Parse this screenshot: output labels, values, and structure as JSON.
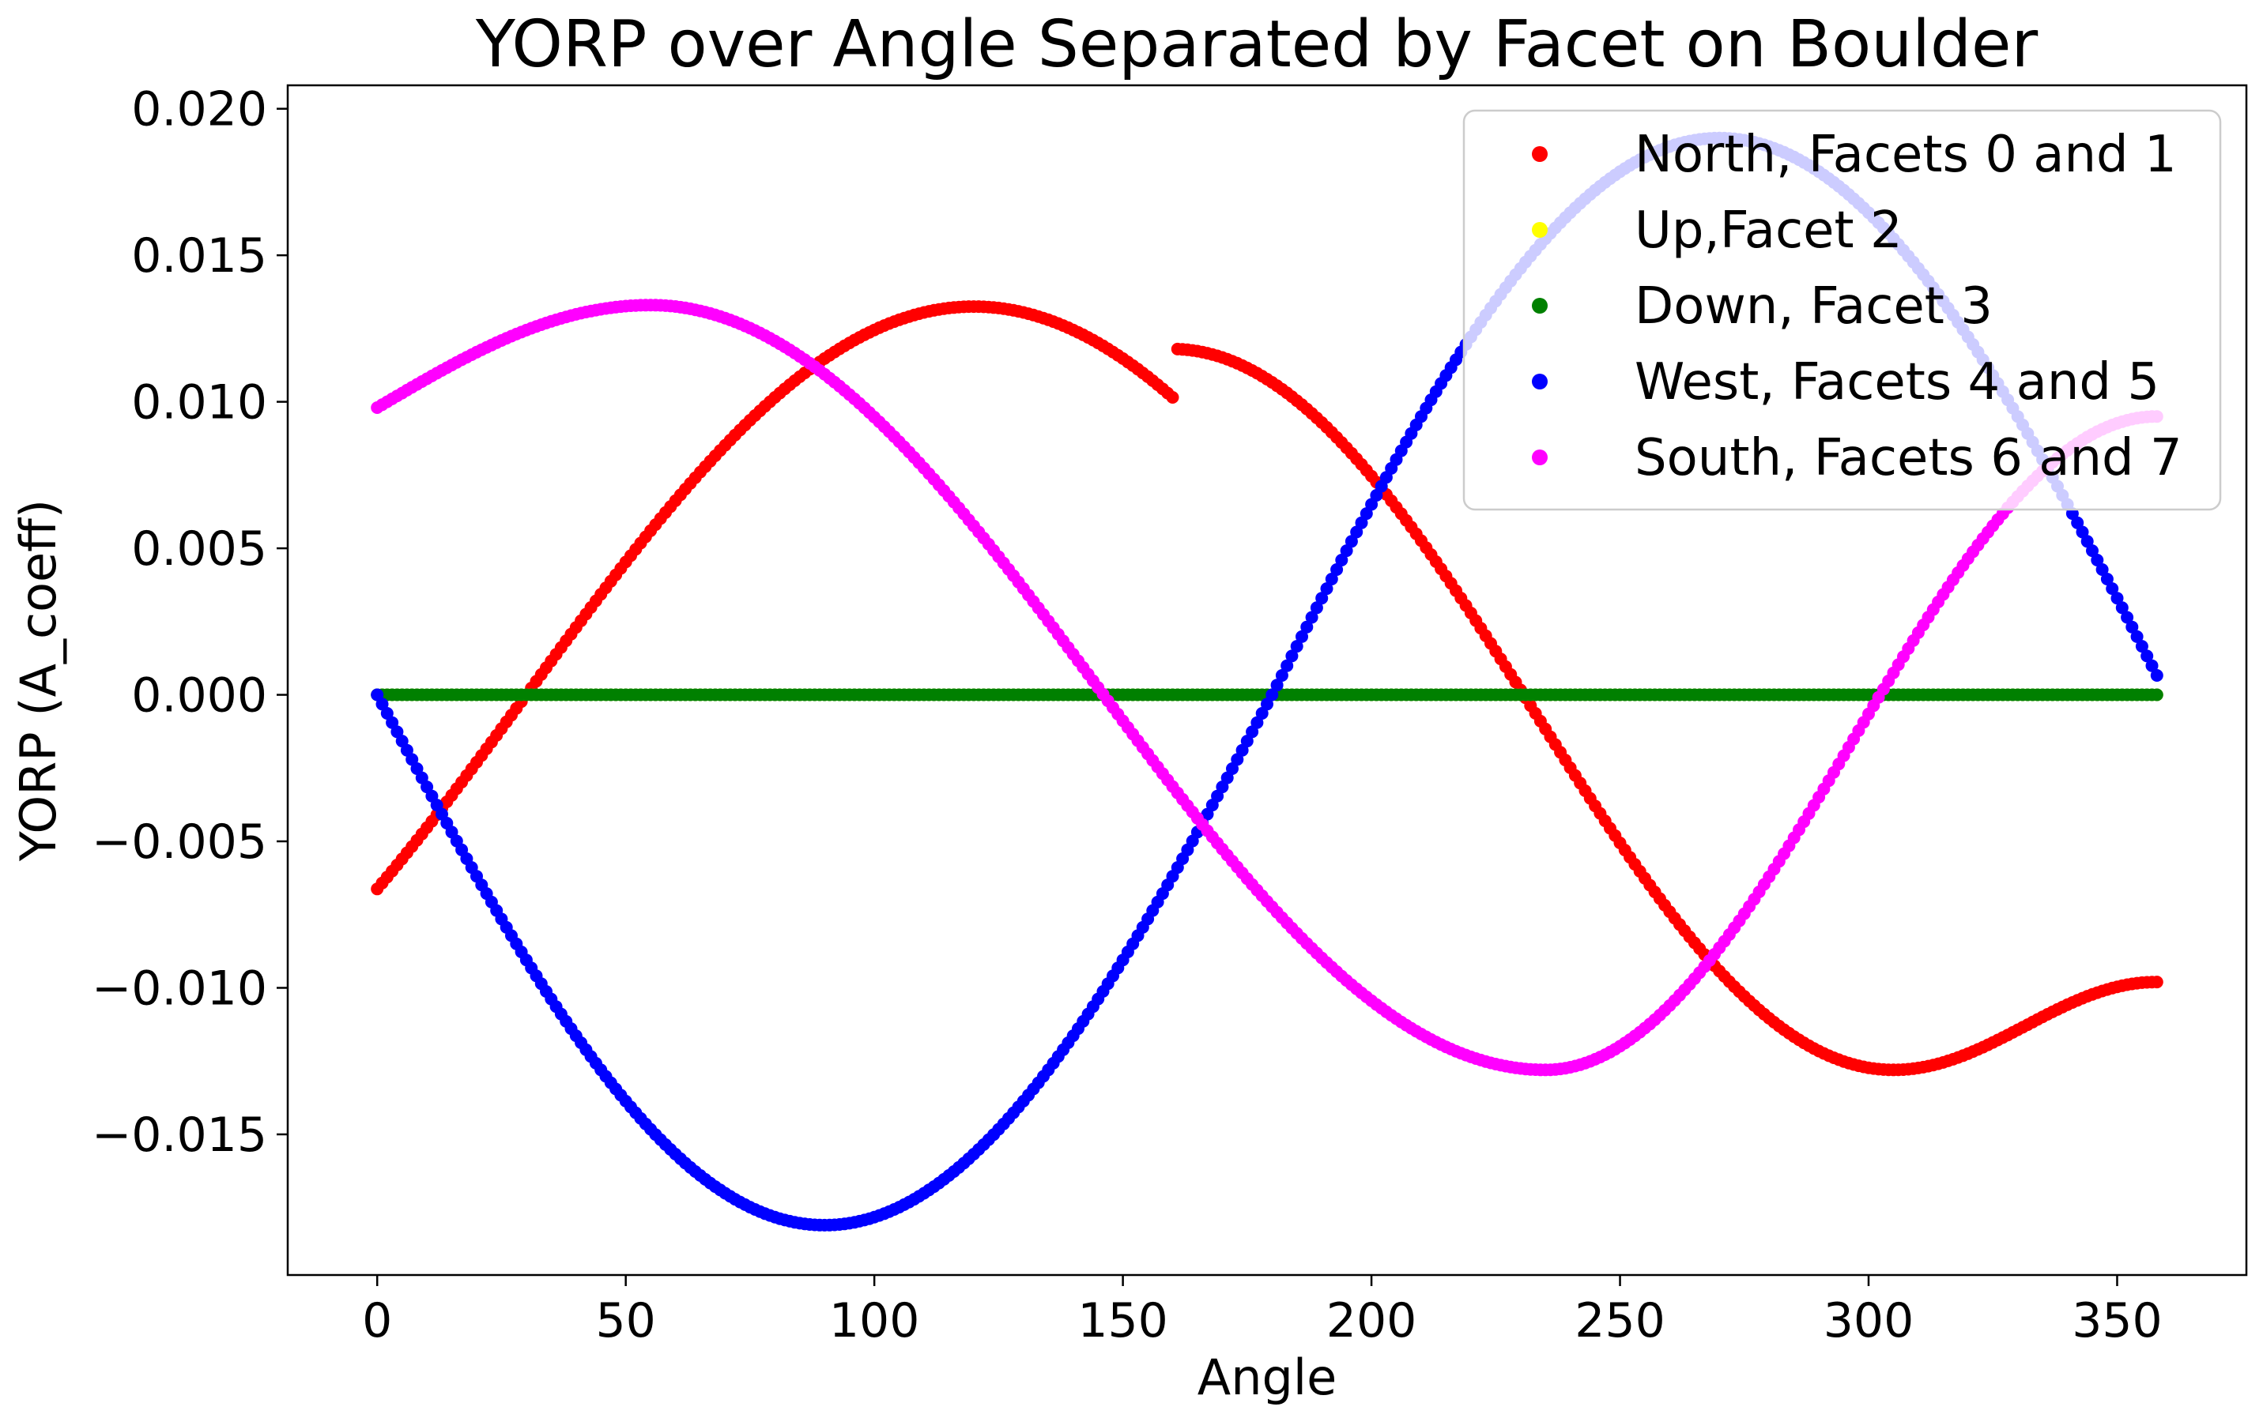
{
  "chart_data": {
    "type": "scatter",
    "title": "YORP over Angle Separated by Facet on Boulder",
    "xlabel": "Angle",
    "ylabel": "YORP (A_coeff)",
    "xlim": [
      -18,
      376
    ],
    "ylim": [
      -0.0198,
      0.0208
    ],
    "xticks": [
      0,
      50,
      100,
      150,
      200,
      250,
      300,
      350
    ],
    "xtick_labels": [
      "0",
      "50",
      "100",
      "150",
      "200",
      "250",
      "300",
      "350"
    ],
    "yticks": [
      -0.015,
      -0.01,
      -0.005,
      0.0,
      0.005,
      0.01,
      0.015,
      0.02
    ],
    "ytick_labels": [
      "−0.015",
      "−0.010",
      "−0.005",
      "0.000",
      "0.005",
      "0.010",
      "0.015",
      "0.020"
    ],
    "grid": false,
    "legend": {
      "position": "upper right",
      "frame": true
    },
    "x": {
      "start": 0,
      "stop": 358,
      "step": 1
    },
    "series": [
      {
        "name": "North, Facets 0 and 1",
        "color": "#ff0000",
        "model": {
          "kind": "north",
          "amplitude": 0.01325,
          "peak_angle": 120,
          "min_angle": 305,
          "min_value": -0.0128
        }
      },
      {
        "name": "Up,Facet 2",
        "color": "#ffff00",
        "model": {
          "kind": "constant",
          "value": 0.0
        }
      },
      {
        "name": "Down, Facet 3",
        "color": "#008000",
        "model": {
          "kind": "constant",
          "value": 0.0
        }
      },
      {
        "name": "West, Facets 4 and 5",
        "color": "#0000ff",
        "model": {
          "kind": "west",
          "amplitude_neg": 0.0181,
          "amplitude_pos": 0.019
        }
      },
      {
        "name": "South, Facets 6 and 7",
        "color": "#ff00ff",
        "model": {
          "kind": "south",
          "start_value": 0.0098,
          "peak_angle": 55,
          "peak_value": 0.0133,
          "min_angle": 235,
          "min_value": -0.0128,
          "end_value": 0.0095
        }
      }
    ]
  }
}
